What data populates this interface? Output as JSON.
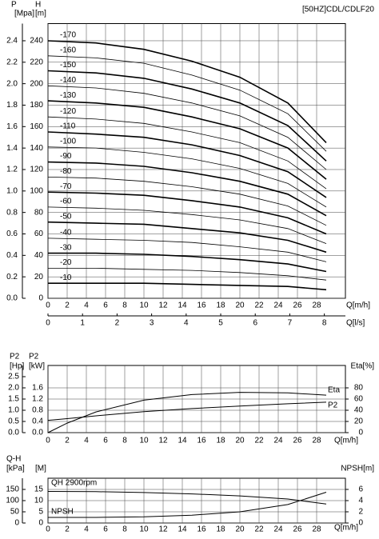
{
  "chart_data": [
    {
      "type": "line",
      "title": "[50HZ]CDL/CDLF20",
      "x": [
        0,
        5,
        10,
        15,
        20,
        25,
        29
      ],
      "xlim": [
        0,
        31
      ],
      "xticks": [
        0,
        2,
        4,
        6,
        8,
        10,
        12,
        14,
        16,
        18,
        20,
        22,
        24,
        26,
        28
      ],
      "x_label": "Q[m/h]",
      "x2lim": [
        0,
        8.61
      ],
      "x2ticks": [
        0,
        1,
        2,
        3,
        4,
        5,
        6,
        7,
        8
      ],
      "x2_label": "Q[l/s]",
      "ylim": [
        0,
        256
      ],
      "yticks": [
        0,
        20,
        40,
        60,
        80,
        100,
        120,
        140,
        160,
        180,
        200,
        220,
        240
      ],
      "y_label": [
        "H",
        "[m]"
      ],
      "y3lim": [
        0,
        2.56
      ],
      "y3ticks": [
        {
          "value": 0,
          "label": "0.0"
        },
        0.2,
        0.4,
        0.6,
        0.8,
        {
          "value": 1,
          "label": "1.0"
        },
        1.2,
        1.4,
        1.6,
        1.8,
        {
          "value": 2,
          "label": "2.0"
        },
        2.2,
        2.4
      ],
      "y3_label": [
        "P",
        "[Mpa]"
      ],
      "grid": true,
      "series": [
        {
          "name": "-10",
          "color": "#000000",
          "values": [
            14,
            14,
            14,
            13,
            12,
            11,
            8
          ]
        },
        {
          "name": "-20",
          "color": "#000000",
          "values": [
            28,
            28,
            27,
            26,
            24,
            21,
            17
          ]
        },
        {
          "name": "-30",
          "color": "#000000",
          "values": [
            42,
            42,
            41,
            39,
            36,
            32,
            25
          ]
        },
        {
          "name": "-40",
          "color": "#000000",
          "values": [
            56,
            55,
            54,
            52,
            48,
            43,
            34
          ]
        },
        {
          "name": "-50",
          "color": "#000000",
          "values": [
            71,
            70,
            69,
            65,
            61,
            54,
            43
          ]
        },
        {
          "name": "-60",
          "color": "#000000",
          "values": [
            85,
            84,
            82,
            78,
            73,
            65,
            51
          ]
        },
        {
          "name": "-70",
          "color": "#000000",
          "values": [
            99,
            98,
            96,
            91,
            85,
            75,
            60
          ]
        },
        {
          "name": "-80",
          "color": "#000000",
          "values": [
            113,
            112,
            109,
            104,
            97,
            86,
            68
          ]
        },
        {
          "name": "-90",
          "color": "#000000",
          "values": [
            127,
            126,
            123,
            117,
            109,
            97,
            77
          ]
        },
        {
          "name": "-100",
          "color": "#000000",
          "values": [
            141,
            140,
            136,
            130,
            121,
            107,
            85
          ]
        },
        {
          "name": "-110",
          "color": "#000000",
          "values": [
            155,
            153,
            150,
            143,
            133,
            118,
            94
          ]
        },
        {
          "name": "-120",
          "color": "#000000",
          "values": [
            169,
            167,
            163,
            155,
            145,
            128,
            102
          ]
        },
        {
          "name": "-130",
          "color": "#000000",
          "values": [
            184,
            182,
            178,
            169,
            158,
            140,
            111
          ]
        },
        {
          "name": "-140",
          "color": "#000000",
          "values": [
            198,
            196,
            191,
            182,
            170,
            150,
            120
          ]
        },
        {
          "name": "-150",
          "color": "#000000",
          "values": [
            212,
            210,
            205,
            195,
            182,
            161,
            128
          ]
        },
        {
          "name": "-160",
          "color": "#000000",
          "values": [
            226,
            224,
            219,
            208,
            194,
            172,
            137
          ]
        },
        {
          "name": "-170",
          "color": "#000000",
          "values": [
            240,
            238,
            232,
            221,
            206,
            182,
            145
          ]
        }
      ]
    },
    {
      "type": "line",
      "x": [
        0,
        2,
        5,
        10,
        15,
        20,
        25,
        29
      ],
      "xlim": [
        0,
        31
      ],
      "xticks": [
        0,
        2,
        4,
        6,
        8,
        10,
        12,
        14,
        16,
        18,
        20,
        22,
        24,
        26,
        28
      ],
      "x_label": "Q[m/h]",
      "ylim": [
        0,
        2.4
      ],
      "yticks": [
        {
          "value": 0,
          "label": "0.0"
        },
        0.4,
        0.8,
        1.2,
        1.6
      ],
      "y_label": [
        "P2",
        "[kW]"
      ],
      "y3lim": [
        0,
        3
      ],
      "y3ticks": [
        {
          "value": 0,
          "label": "0.0"
        },
        0.5,
        {
          "value": 1,
          "label": "1.0"
        },
        1.5,
        {
          "value": 2,
          "label": "2.0"
        },
        2.5
      ],
      "y3_label": [
        "P2",
        "[Hp]"
      ],
      "y2lim": [
        0,
        120
      ],
      "y2ticks": [
        0,
        20,
        40,
        60,
        80
      ],
      "y2_label": "Eta[%]",
      "grid": true,
      "series": [
        {
          "name": "Eta",
          "color": "#000000",
          "axis": "y2",
          "values": [
            0,
            17,
            37,
            58,
            68,
            72,
            71,
            67
          ]
        },
        {
          "name": "P2",
          "color": "#000000",
          "values": [
            0.44,
            0.5,
            0.6,
            0.75,
            0.86,
            0.95,
            1.03,
            1.09
          ]
        }
      ]
    },
    {
      "type": "line",
      "x": [
        0,
        5,
        10,
        15,
        20,
        25,
        29
      ],
      "xlim": [
        0,
        31
      ],
      "xticks": [
        0,
        2,
        4,
        6,
        8,
        10,
        12,
        14,
        16,
        18,
        20,
        22,
        24,
        26,
        28
      ],
      "x_label": "Q[m/h]",
      "ylim": [
        0,
        20
      ],
      "yticks": [
        0,
        5,
        10,
        15
      ],
      "y_label": "[M]",
      "y3lim": [
        0,
        200
      ],
      "y3ticks": [
        0,
        50,
        100,
        150
      ],
      "y3_label": [
        "Q-H",
        "[kPa]"
      ],
      "y2lim": [
        0,
        8
      ],
      "y2ticks": [
        0,
        2,
        4,
        6
      ],
      "y2_label": "NPSH[m]",
      "grid": true,
      "series": [
        {
          "name": "QH 2900rpm",
          "color": "#000000",
          "values": [
            14.1,
            14,
            13.6,
            13,
            12.1,
            10.7,
            8.5
          ]
        },
        {
          "name": "NPSH",
          "color": "#000000",
          "axis": "y2",
          "values": [
            1,
            1,
            1.1,
            1.4,
            2,
            3.3,
            5.5
          ]
        }
      ]
    }
  ]
}
